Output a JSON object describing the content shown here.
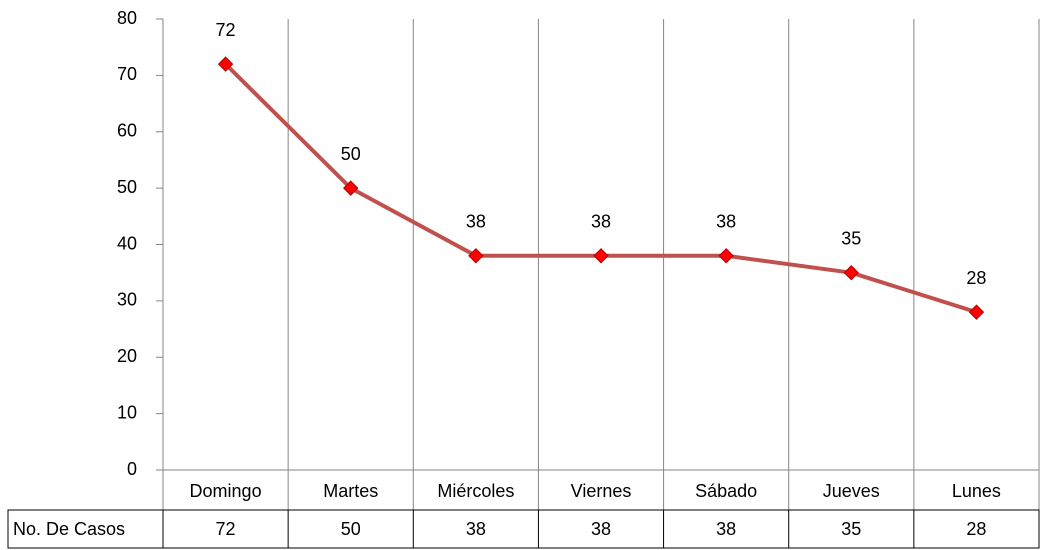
{
  "chart_data": {
    "type": "line",
    "categories": [
      "Domingo",
      "Martes",
      "Miércoles",
      "Viernes",
      "Sábado",
      "Jueves",
      "Lunes"
    ],
    "series": [
      {
        "name": "No. De Casos",
        "color": "#c0504d",
        "marker_color": "#ff0000",
        "values": [
          72,
          50,
          38,
          38,
          38,
          35,
          28
        ]
      }
    ],
    "ylim": [
      0,
      80
    ],
    "yticks": [
      0,
      10,
      20,
      30,
      40,
      50,
      60,
      70,
      80
    ],
    "grid": true,
    "data_labels": true,
    "data_table": true
  }
}
